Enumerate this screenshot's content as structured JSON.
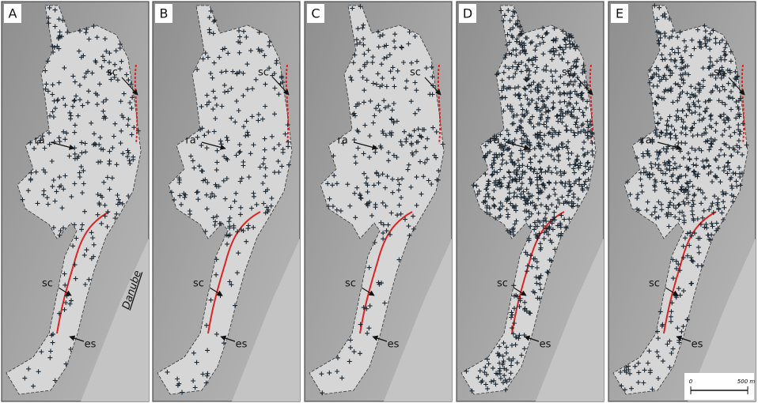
{
  "panels": [
    {
      "label": "A",
      "annotations": [
        "sc",
        "ra",
        "sc",
        "es"
      ]
    },
    {
      "label": "B",
      "annotations": [
        "sc",
        "ra",
        "sc",
        "es"
      ]
    },
    {
      "label": "C",
      "annotations": [
        "sc",
        "ra",
        "sc",
        "es"
      ]
    },
    {
      "label": "D",
      "annotations": [
        "sc",
        "ra",
        "sc",
        "es"
      ]
    },
    {
      "label": "E",
      "annotations": [
        "sc",
        "ra",
        "sc",
        "es"
      ]
    }
  ],
  "river_label": "Danube",
  "scale_bar": {
    "start": "0",
    "end": "500 m"
  }
}
